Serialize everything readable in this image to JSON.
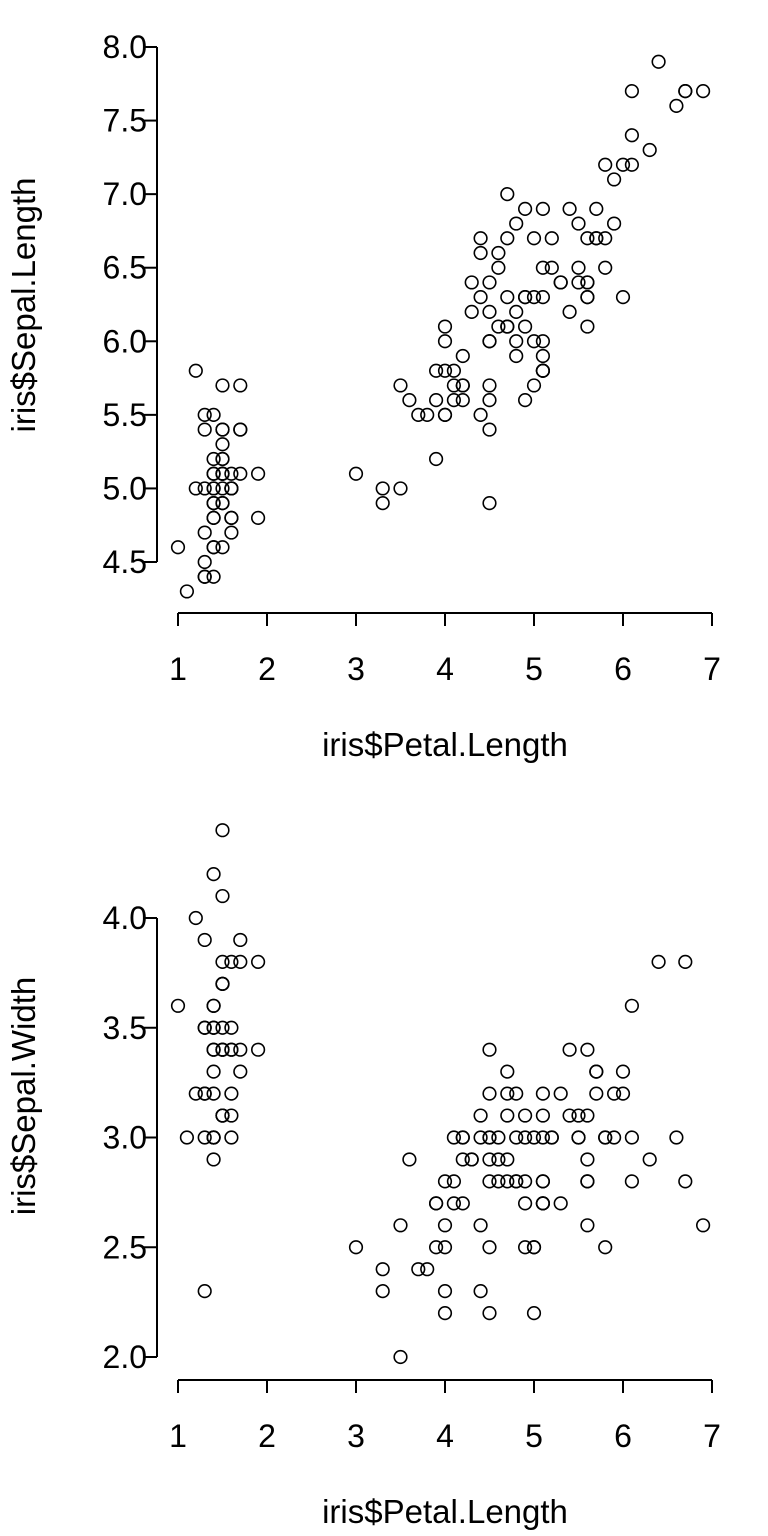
{
  "chart_data": [
    {
      "type": "scatter",
      "title": "",
      "xlabel": "iris$Petal.Length",
      "ylabel": "iris$Sepal.Length",
      "xlim": [
        1,
        7
      ],
      "ylim": [
        4.3,
        7.9
      ],
      "x_ticks": [
        1,
        2,
        3,
        4,
        5,
        6,
        7
      ],
      "y_ticks": [
        4.5,
        5.0,
        5.5,
        6.0,
        6.5,
        7.0,
        7.5,
        8.0
      ],
      "x_tick_labels": [
        "1",
        "2",
        "3",
        "4",
        "5",
        "6",
        "7"
      ],
      "y_tick_labels": [
        "4.5",
        "5.0",
        "5.5",
        "6.0",
        "6.5",
        "7.0",
        "7.5",
        "8.0"
      ],
      "grid": false,
      "points": [
        [
          1.4,
          5.1
        ],
        [
          1.4,
          4.9
        ],
        [
          1.3,
          4.7
        ],
        [
          1.5,
          4.6
        ],
        [
          1.4,
          5.0
        ],
        [
          1.7,
          5.4
        ],
        [
          1.4,
          4.6
        ],
        [
          1.5,
          5.0
        ],
        [
          1.4,
          4.4
        ],
        [
          1.5,
          4.9
        ],
        [
          1.5,
          5.4
        ],
        [
          1.6,
          4.8
        ],
        [
          1.4,
          4.8
        ],
        [
          1.1,
          4.3
        ],
        [
          1.2,
          5.8
        ],
        [
          1.5,
          5.7
        ],
        [
          1.3,
          5.4
        ],
        [
          1.4,
          5.1
        ],
        [
          1.7,
          5.7
        ],
        [
          1.5,
          5.1
        ],
        [
          1.7,
          5.4
        ],
        [
          1.5,
          5.1
        ],
        [
          1.0,
          4.6
        ],
        [
          1.7,
          5.1
        ],
        [
          1.9,
          4.8
        ],
        [
          1.6,
          5.0
        ],
        [
          1.6,
          5.0
        ],
        [
          1.5,
          5.2
        ],
        [
          1.4,
          5.2
        ],
        [
          1.6,
          4.7
        ],
        [
          1.6,
          4.8
        ],
        [
          1.5,
          5.4
        ],
        [
          1.5,
          5.2
        ],
        [
          1.4,
          5.5
        ],
        [
          1.5,
          4.9
        ],
        [
          1.2,
          5.0
        ],
        [
          1.3,
          5.5
        ],
        [
          1.4,
          4.9
        ],
        [
          1.3,
          4.4
        ],
        [
          1.5,
          5.1
        ],
        [
          1.3,
          5.0
        ],
        [
          1.3,
          4.5
        ],
        [
          1.3,
          4.4
        ],
        [
          1.6,
          5.0
        ],
        [
          1.9,
          5.1
        ],
        [
          1.4,
          4.8
        ],
        [
          1.6,
          5.1
        ],
        [
          1.4,
          4.6
        ],
        [
          1.5,
          5.3
        ],
        [
          1.4,
          5.0
        ],
        [
          4.7,
          7.0
        ],
        [
          4.5,
          6.4
        ],
        [
          4.9,
          6.9
        ],
        [
          4.0,
          5.5
        ],
        [
          4.6,
          6.5
        ],
        [
          4.5,
          5.7
        ],
        [
          4.7,
          6.3
        ],
        [
          3.3,
          4.9
        ],
        [
          4.6,
          6.6
        ],
        [
          3.9,
          5.2
        ],
        [
          3.5,
          5.0
        ],
        [
          4.2,
          5.9
        ],
        [
          4.0,
          6.0
        ],
        [
          4.7,
          6.1
        ],
        [
          3.6,
          5.6
        ],
        [
          4.4,
          6.7
        ],
        [
          4.5,
          5.6
        ],
        [
          4.1,
          5.8
        ],
        [
          4.5,
          6.2
        ],
        [
          3.9,
          5.6
        ],
        [
          4.8,
          5.9
        ],
        [
          4.0,
          6.1
        ],
        [
          4.9,
          6.3
        ],
        [
          4.7,
          6.1
        ],
        [
          4.3,
          6.4
        ],
        [
          4.4,
          6.6
        ],
        [
          4.8,
          6.8
        ],
        [
          5.0,
          6.7
        ],
        [
          4.5,
          6.0
        ],
        [
          3.5,
          5.7
        ],
        [
          3.8,
          5.5
        ],
        [
          3.7,
          5.5
        ],
        [
          3.9,
          5.8
        ],
        [
          5.1,
          6.0
        ],
        [
          4.5,
          5.4
        ],
        [
          4.5,
          6.0
        ],
        [
          4.7,
          6.7
        ],
        [
          4.4,
          6.3
        ],
        [
          4.1,
          5.6
        ],
        [
          4.0,
          5.5
        ],
        [
          4.4,
          5.5
        ],
        [
          4.6,
          6.1
        ],
        [
          4.0,
          5.8
        ],
        [
          3.3,
          5.0
        ],
        [
          4.2,
          5.6
        ],
        [
          4.2,
          5.7
        ],
        [
          4.2,
          5.7
        ],
        [
          4.3,
          6.2
        ],
        [
          3.0,
          5.1
        ],
        [
          4.1,
          5.7
        ],
        [
          6.0,
          6.3
        ],
        [
          5.1,
          5.8
        ],
        [
          5.9,
          7.1
        ],
        [
          5.6,
          6.3
        ],
        [
          5.8,
          6.5
        ],
        [
          6.6,
          7.6
        ],
        [
          4.5,
          4.9
        ],
        [
          6.3,
          7.3
        ],
        [
          5.8,
          6.7
        ],
        [
          6.1,
          7.2
        ],
        [
          5.1,
          6.5
        ],
        [
          5.3,
          6.4
        ],
        [
          5.5,
          6.8
        ],
        [
          5.0,
          5.7
        ],
        [
          5.1,
          5.8
        ],
        [
          5.3,
          6.4
        ],
        [
          5.5,
          6.5
        ],
        [
          6.7,
          7.7
        ],
        [
          6.9,
          7.7
        ],
        [
          5.0,
          6.0
        ],
        [
          5.7,
          6.9
        ],
        [
          4.9,
          5.6
        ],
        [
          6.7,
          7.7
        ],
        [
          4.9,
          6.3
        ],
        [
          5.7,
          6.7
        ],
        [
          6.0,
          7.2
        ],
        [
          4.8,
          6.2
        ],
        [
          4.9,
          6.1
        ],
        [
          5.6,
          6.4
        ],
        [
          5.8,
          7.2
        ],
        [
          6.1,
          7.4
        ],
        [
          6.4,
          7.9
        ],
        [
          5.6,
          6.4
        ],
        [
          5.1,
          6.3
        ],
        [
          5.6,
          6.1
        ],
        [
          6.1,
          7.7
        ],
        [
          5.6,
          6.3
        ],
        [
          5.5,
          6.4
        ],
        [
          4.8,
          6.0
        ],
        [
          5.4,
          6.9
        ],
        [
          5.6,
          6.7
        ],
        [
          5.1,
          6.9
        ],
        [
          5.1,
          5.8
        ],
        [
          5.9,
          6.8
        ],
        [
          5.7,
          6.7
        ],
        [
          5.2,
          6.7
        ],
        [
          5.0,
          6.3
        ],
        [
          5.2,
          6.5
        ],
        [
          5.4,
          6.2
        ],
        [
          5.1,
          5.9
        ]
      ]
    },
    {
      "type": "scatter",
      "title": "",
      "xlabel": "iris$Petal.Length",
      "ylabel": "iris$Sepal.Width",
      "xlim": [
        1,
        7
      ],
      "ylim": [
        2.0,
        4.4
      ],
      "x_ticks": [
        1,
        2,
        3,
        4,
        5,
        6,
        7
      ],
      "y_ticks": [
        2.0,
        2.5,
        3.0,
        3.5,
        4.0
      ],
      "x_tick_labels": [
        "1",
        "2",
        "3",
        "4",
        "5",
        "6",
        "7"
      ],
      "y_tick_labels": [
        "2.0",
        "2.5",
        "3.0",
        "3.5",
        "4.0"
      ],
      "grid": false,
      "points": [
        [
          1.4,
          3.5
        ],
        [
          1.4,
          3.0
        ],
        [
          1.3,
          3.2
        ],
        [
          1.5,
          3.1
        ],
        [
          1.4,
          3.6
        ],
        [
          1.7,
          3.9
        ],
        [
          1.4,
          3.4
        ],
        [
          1.5,
          3.4
        ],
        [
          1.4,
          2.9
        ],
        [
          1.5,
          3.1
        ],
        [
          1.5,
          3.7
        ],
        [
          1.6,
          3.4
        ],
        [
          1.4,
          3.0
        ],
        [
          1.1,
          3.0
        ],
        [
          1.2,
          4.0
        ],
        [
          1.5,
          4.4
        ],
        [
          1.3,
          3.9
        ],
        [
          1.4,
          3.5
        ],
        [
          1.7,
          3.8
        ],
        [
          1.5,
          3.8
        ],
        [
          1.7,
          3.4
        ],
        [
          1.5,
          3.7
        ],
        [
          1.0,
          3.6
        ],
        [
          1.7,
          3.3
        ],
        [
          1.9,
          3.4
        ],
        [
          1.6,
          3.0
        ],
        [
          1.6,
          3.4
        ],
        [
          1.5,
          3.5
        ],
        [
          1.4,
          3.4
        ],
        [
          1.6,
          3.2
        ],
        [
          1.6,
          3.1
        ],
        [
          1.5,
          3.4
        ],
        [
          1.5,
          4.1
        ],
        [
          1.4,
          4.2
        ],
        [
          1.5,
          3.1
        ],
        [
          1.2,
          3.2
        ],
        [
          1.3,
          3.5
        ],
        [
          1.4,
          3.6
        ],
        [
          1.3,
          3.0
        ],
        [
          1.5,
          3.4
        ],
        [
          1.3,
          3.5
        ],
        [
          1.3,
          2.3
        ],
        [
          1.3,
          3.2
        ],
        [
          1.6,
          3.5
        ],
        [
          1.9,
          3.8
        ],
        [
          1.4,
          3.0
        ],
        [
          1.6,
          3.8
        ],
        [
          1.4,
          3.2
        ],
        [
          1.5,
          3.7
        ],
        [
          1.4,
          3.3
        ],
        [
          4.7,
          3.2
        ],
        [
          4.5,
          3.2
        ],
        [
          4.9,
          3.1
        ],
        [
          4.0,
          2.3
        ],
        [
          4.6,
          2.8
        ],
        [
          4.5,
          2.8
        ],
        [
          4.7,
          3.3
        ],
        [
          3.3,
          2.4
        ],
        [
          4.6,
          2.9
        ],
        [
          3.9,
          2.7
        ],
        [
          3.5,
          2.0
        ],
        [
          4.2,
          3.0
        ],
        [
          4.0,
          2.2
        ],
        [
          4.7,
          2.9
        ],
        [
          3.6,
          2.9
        ],
        [
          4.4,
          3.1
        ],
        [
          4.5,
          3.0
        ],
        [
          4.1,
          2.7
        ],
        [
          4.5,
          2.2
        ],
        [
          3.9,
          2.5
        ],
        [
          4.8,
          3.2
        ],
        [
          4.0,
          2.8
        ],
        [
          4.9,
          2.5
        ],
        [
          4.7,
          2.8
        ],
        [
          4.3,
          2.9
        ],
        [
          4.4,
          3.0
        ],
        [
          4.8,
          2.8
        ],
        [
          5.0,
          3.0
        ],
        [
          4.5,
          2.9
        ],
        [
          3.5,
          2.6
        ],
        [
          3.8,
          2.4
        ],
        [
          3.7,
          2.4
        ],
        [
          3.9,
          2.7
        ],
        [
          5.1,
          2.7
        ],
        [
          4.5,
          3.0
        ],
        [
          4.5,
          3.4
        ],
        [
          4.7,
          3.1
        ],
        [
          4.4,
          2.3
        ],
        [
          4.1,
          3.0
        ],
        [
          4.0,
          2.5
        ],
        [
          4.4,
          2.6
        ],
        [
          4.6,
          3.0
        ],
        [
          4.0,
          2.6
        ],
        [
          3.3,
          2.3
        ],
        [
          4.2,
          2.7
        ],
        [
          4.2,
          3.0
        ],
        [
          4.2,
          2.9
        ],
        [
          4.3,
          2.9
        ],
        [
          3.0,
          2.5
        ],
        [
          4.1,
          2.8
        ],
        [
          6.0,
          3.3
        ],
        [
          5.1,
          2.7
        ],
        [
          5.9,
          3.0
        ],
        [
          5.6,
          2.9
        ],
        [
          5.8,
          3.0
        ],
        [
          6.6,
          3.0
        ],
        [
          4.5,
          2.5
        ],
        [
          6.3,
          2.9
        ],
        [
          5.8,
          2.5
        ],
        [
          6.1,
          3.6
        ],
        [
          5.1,
          3.2
        ],
        [
          5.3,
          2.7
        ],
        [
          5.5,
          3.0
        ],
        [
          5.0,
          2.5
        ],
        [
          5.1,
          2.8
        ],
        [
          5.3,
          3.2
        ],
        [
          5.5,
          3.0
        ],
        [
          6.7,
          3.8
        ],
        [
          6.9,
          2.6
        ],
        [
          5.0,
          2.2
        ],
        [
          5.7,
          3.2
        ],
        [
          4.9,
          2.8
        ],
        [
          6.7,
          2.8
        ],
        [
          4.9,
          2.7
        ],
        [
          5.7,
          3.3
        ],
        [
          6.0,
          3.2
        ],
        [
          4.8,
          2.8
        ],
        [
          4.9,
          3.0
        ],
        [
          5.6,
          2.8
        ],
        [
          5.8,
          3.0
        ],
        [
          6.1,
          2.8
        ],
        [
          6.4,
          3.8
        ],
        [
          5.6,
          2.8
        ],
        [
          5.1,
          2.8
        ],
        [
          5.6,
          2.6
        ],
        [
          6.1,
          3.0
        ],
        [
          5.6,
          3.4
        ],
        [
          5.5,
          3.1
        ],
        [
          4.8,
          3.0
        ],
        [
          5.4,
          3.1
        ],
        [
          5.6,
          3.1
        ],
        [
          5.1,
          3.1
        ],
        [
          5.1,
          2.7
        ],
        [
          5.9,
          3.2
        ],
        [
          5.7,
          3.3
        ],
        [
          5.2,
          3.0
        ],
        [
          5.0,
          2.5
        ],
        [
          5.2,
          3.0
        ],
        [
          5.4,
          3.4
        ],
        [
          5.1,
          3.0
        ]
      ]
    }
  ]
}
